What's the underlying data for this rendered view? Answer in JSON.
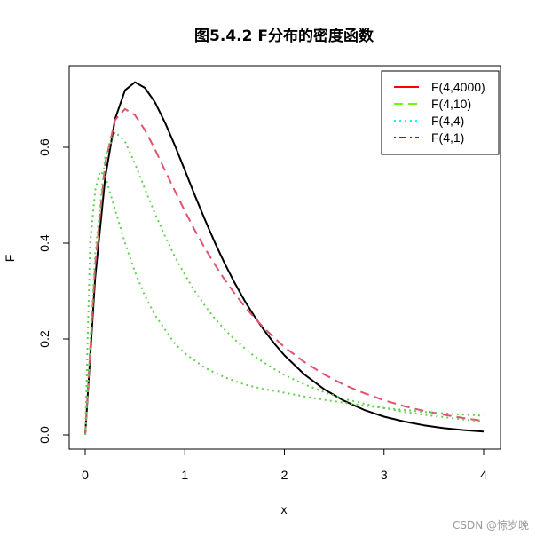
{
  "chart_data": {
    "type": "line",
    "title": "图5.4.2 F分布的密度函数",
    "xlabel": "x",
    "ylabel": "F",
    "xlim": [
      0,
      4
    ],
    "ylim": [
      0,
      0.74
    ],
    "x_ticks": [
      "0",
      "1",
      "2",
      "3",
      "4"
    ],
    "y_ticks": [
      "0.0",
      "0.2",
      "0.4",
      "0.6"
    ],
    "x_tick_values": [
      0,
      1,
      2,
      3,
      4
    ],
    "y_tick_values": [
      0,
      0.2,
      0.4,
      0.6
    ],
    "grid": false,
    "legend_position": "top-right",
    "legend": [
      {
        "label": "F(4,4000)",
        "color": "#ff0000",
        "dash": "solid"
      },
      {
        "label": "F(4,10)",
        "color": "#66ff00",
        "dash": "dashed"
      },
      {
        "label": "F(4,4)",
        "color": "#00ffff",
        "dash": "dotted"
      },
      {
        "label": "F(4,1)",
        "color": "#6600ff",
        "dash": "dotdash"
      }
    ],
    "series": [
      {
        "color": "#000000",
        "dash": "solid",
        "x": [
          0,
          0.1,
          0.2,
          0.3,
          0.4,
          0.5,
          0.6,
          0.7,
          0.8,
          0.9,
          1,
          1.1,
          1.2,
          1.3,
          1.4,
          1.5,
          1.6,
          1.7,
          1.8,
          1.9,
          2,
          2.2,
          2.4,
          2.6,
          2.8,
          3,
          3.2,
          3.4,
          3.6,
          3.8,
          4
        ],
        "values": [
          0,
          0.327,
          0.536,
          0.659,
          0.719,
          0.736,
          0.724,
          0.694,
          0.652,
          0.604,
          0.552,
          0.5,
          0.45,
          0.402,
          0.358,
          0.317,
          0.28,
          0.247,
          0.217,
          0.19,
          0.166,
          0.126,
          0.095,
          0.071,
          0.052,
          0.038,
          0.028,
          0.02,
          0.014,
          0.01,
          0.007
        ]
      },
      {
        "color": "#df536b",
        "dash": "dashed",
        "x": [
          0,
          0.1,
          0.2,
          0.3,
          0.4,
          0.5,
          0.6,
          0.7,
          0.8,
          0.9,
          1,
          1.1,
          1.2,
          1.3,
          1.4,
          1.5,
          1.6,
          1.7,
          1.8,
          1.9,
          2,
          2.2,
          2.4,
          2.6,
          2.8,
          3,
          3.2,
          3.4,
          3.6,
          3.8,
          4
        ],
        "values": [
          0,
          0.353,
          0.567,
          0.657,
          0.68,
          0.667,
          0.636,
          0.596,
          0.552,
          0.509,
          0.467,
          0.427,
          0.39,
          0.356,
          0.324,
          0.295,
          0.268,
          0.244,
          0.222,
          0.202,
          0.183,
          0.152,
          0.126,
          0.104,
          0.087,
          0.072,
          0.06,
          0.05,
          0.042,
          0.035,
          0.029
        ]
      },
      {
        "color": "#61d04f",
        "dash": "dotted",
        "x": [
          0,
          0.1,
          0.2,
          0.3,
          0.4,
          0.5,
          0.6,
          0.7,
          0.8,
          0.9,
          1,
          1.1,
          1.2,
          1.3,
          1.4,
          1.5,
          1.6,
          1.7,
          1.8,
          1.9,
          2,
          2.2,
          2.4,
          2.6,
          2.8,
          3,
          3.2,
          3.4,
          3.6,
          3.8,
          4
        ],
        "values": [
          0,
          0.376,
          0.579,
          0.632,
          0.612,
          0.566,
          0.513,
          0.462,
          0.415,
          0.372,
          0.334,
          0.3,
          0.27,
          0.243,
          0.22,
          0.199,
          0.181,
          0.164,
          0.15,
          0.137,
          0.125,
          0.105,
          0.089,
          0.075,
          0.065,
          0.056,
          0.048,
          0.042,
          0.037,
          0.032,
          0.028
        ]
      },
      {
        "color": "#61d04f",
        "dash": "dotted",
        "x": [
          0,
          0.05,
          0.1,
          0.15,
          0.2,
          0.3,
          0.4,
          0.5,
          0.6,
          0.7,
          0.8,
          0.9,
          1,
          1.2,
          1.4,
          1.6,
          1.8,
          2,
          2.2,
          2.4,
          2.6,
          2.8,
          3,
          3.2,
          3.4,
          3.6,
          3.8,
          4
        ],
        "values": [
          0,
          0.4,
          0.51,
          0.55,
          0.54,
          0.47,
          0.4,
          0.34,
          0.29,
          0.25,
          0.22,
          0.19,
          0.17,
          0.14,
          0.12,
          0.105,
          0.095,
          0.088,
          0.08,
          0.073,
          0.067,
          0.061,
          0.056,
          0.052,
          0.048,
          0.045,
          0.042,
          0.04
        ]
      }
    ]
  },
  "watermark": "CSDN @惊岁晚"
}
